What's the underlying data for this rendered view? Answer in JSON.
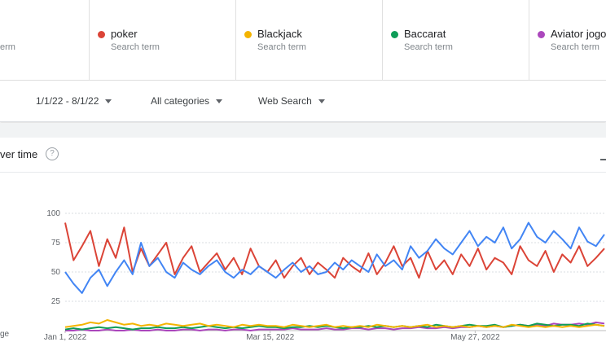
{
  "header": {
    "first_term_subtitle": "erm",
    "term_subtitles": [
      "Search term",
      "Search term",
      "Search term",
      "Search term"
    ]
  },
  "filters": [
    "1/1/22 - 8/1/22",
    "All categories",
    "Web Search"
  ],
  "card": {
    "title": "ver time",
    "side_label": "ge"
  },
  "chart_data": {
    "type": "line",
    "x": [
      "2022-01-01",
      "2022-01-04",
      "2022-01-07",
      "2022-01-10",
      "2022-01-13",
      "2022-01-16",
      "2022-01-19",
      "2022-01-22",
      "2022-01-25",
      "2022-01-28",
      "2022-01-31",
      "2022-02-03",
      "2022-02-06",
      "2022-02-09",
      "2022-02-12",
      "2022-02-15",
      "2022-02-18",
      "2022-02-21",
      "2022-02-24",
      "2022-02-27",
      "2022-03-02",
      "2022-03-05",
      "2022-03-08",
      "2022-03-11",
      "2022-03-14",
      "2022-03-17",
      "2022-03-20",
      "2022-03-23",
      "2022-03-26",
      "2022-03-29",
      "2022-04-01",
      "2022-04-04",
      "2022-04-07",
      "2022-04-10",
      "2022-04-13",
      "2022-04-16",
      "2022-04-19",
      "2022-04-22",
      "2022-04-25",
      "2022-04-28",
      "2022-05-01",
      "2022-05-04",
      "2022-05-07",
      "2022-05-10",
      "2022-05-13",
      "2022-05-16",
      "2022-05-19",
      "2022-05-22",
      "2022-05-25",
      "2022-05-28",
      "2022-05-31",
      "2022-06-03",
      "2022-06-06",
      "2022-06-09",
      "2022-06-12",
      "2022-06-15",
      "2022-06-18",
      "2022-06-21",
      "2022-06-24",
      "2022-06-27",
      "2022-06-30",
      "2022-07-03",
      "2022-07-06",
      "2022-07-09",
      "2022-07-12"
    ],
    "series": [
      {
        "color": "#4285f4",
        "values": [
          50,
          40,
          32,
          45,
          52,
          38,
          50,
          60,
          48,
          75,
          55,
          62,
          50,
          45,
          58,
          52,
          48,
          55,
          60,
          50,
          45,
          52,
          48,
          55,
          50,
          45,
          52,
          58,
          50,
          55,
          48,
          50,
          58,
          52,
          60,
          55,
          50,
          65,
          55,
          60,
          52,
          72,
          62,
          68,
          78,
          70,
          65,
          75,
          85,
          72,
          80,
          75,
          88,
          70,
          78,
          92,
          80,
          75,
          85,
          78,
          70,
          88,
          76,
          72,
          82
        ]
      },
      {
        "name": "poker",
        "color": "#db4437",
        "values": [
          92,
          60,
          72,
          85,
          55,
          78,
          62,
          88,
          50,
          70,
          55,
          65,
          75,
          48,
          62,
          72,
          50,
          58,
          66,
          52,
          62,
          48,
          70,
          55,
          50,
          60,
          45,
          55,
          62,
          48,
          58,
          52,
          45,
          62,
          55,
          50,
          66,
          48,
          58,
          72,
          55,
          62,
          45,
          68,
          52,
          60,
          48,
          65,
          55,
          70,
          52,
          62,
          58,
          48,
          72,
          60,
          55,
          68,
          50,
          65,
          58,
          72,
          55,
          62,
          70
        ]
      },
      {
        "name": "Blackjack",
        "color": "#f4b400",
        "values": [
          3,
          4,
          5,
          7,
          6,
          9,
          7,
          5,
          6,
          4,
          5,
          4,
          6,
          5,
          4,
          5,
          6,
          4,
          5,
          4,
          3,
          5,
          4,
          5,
          4,
          4,
          3,
          5,
          4,
          3,
          4,
          5,
          3,
          4,
          3,
          4,
          3,
          5,
          4,
          3,
          4,
          3,
          4,
          5,
          3,
          4,
          3,
          4,
          3,
          4,
          3,
          4,
          3,
          5,
          4,
          3,
          4,
          3,
          4,
          3,
          4,
          3,
          4,
          5,
          4
        ]
      },
      {
        "name": "Baccarat",
        "color": "#0f9d58",
        "values": [
          1,
          2,
          1,
          2,
          3,
          2,
          3,
          2,
          1,
          2,
          2,
          3,
          2,
          2,
          3,
          2,
          3,
          4,
          3,
          2,
          3,
          2,
          3,
          4,
          3,
          3,
          2,
          3,
          3,
          4,
          3,
          4,
          3,
          2,
          3,
          3,
          4,
          3,
          4,
          3,
          4,
          3,
          4,
          3,
          5,
          4,
          3,
          4,
          5,
          4,
          4,
          5,
          3,
          4,
          5,
          4,
          6,
          5,
          4,
          5,
          5,
          4,
          6,
          5,
          4
        ]
      },
      {
        "name": "Aviator jogo",
        "color": "#ab47bc",
        "values": [
          0,
          0,
          1,
          0,
          0,
          1,
          0,
          0,
          1,
          0,
          0,
          1,
          0,
          0,
          1,
          1,
          0,
          1,
          1,
          0,
          1,
          1,
          0,
          1,
          1,
          1,
          1,
          2,
          1,
          1,
          1,
          2,
          1,
          1,
          2,
          2,
          1,
          2,
          2,
          1,
          2,
          2,
          3,
          2,
          2,
          3,
          2,
          3,
          3,
          4,
          3,
          4,
          3,
          4,
          5,
          4,
          5,
          4,
          6,
          5,
          5,
          6,
          5,
          7,
          6
        ]
      }
    ],
    "xlim": [
      "2022-01-01",
      "2022-07-12"
    ],
    "xticks": [
      {
        "value": "2022-01-01",
        "label": "Jan 1, 2022"
      },
      {
        "value": "2022-03-15",
        "label": "Mar 15, 2022"
      },
      {
        "value": "2022-05-27",
        "label": "May 27, 2022"
      }
    ],
    "ylim": [
      0,
      100
    ],
    "yticks": [
      25,
      50,
      75,
      100
    ],
    "grid": true
  }
}
